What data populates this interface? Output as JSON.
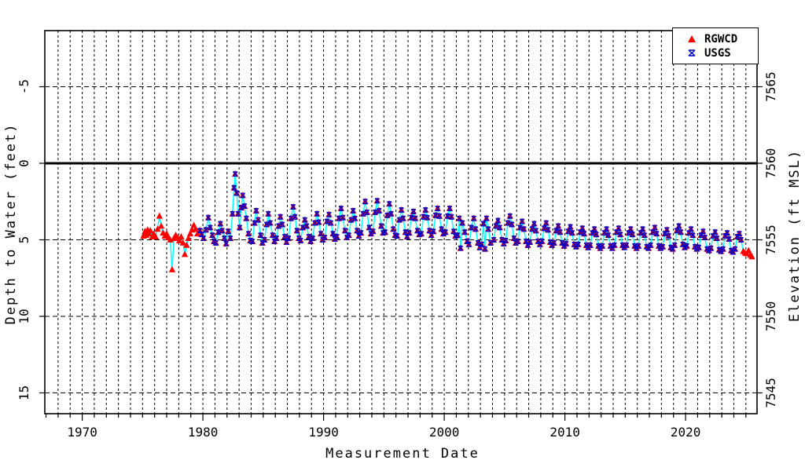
{
  "chart_data": {
    "type": "scatter",
    "title": "",
    "xlabel": "Measurement Date",
    "ylabel_left": "Depth to Water (feet)",
    "ylabel_right": "Elevation (ft MSL)",
    "x_labeled_ticks": [
      1970,
      1980,
      1990,
      2000,
      2010,
      2020
    ],
    "x_minor_tick_years": [
      1967,
      2025
    ],
    "grid_vertical_years": [
      1968,
      2025
    ],
    "y_left_ticks": [
      -5,
      0,
      5,
      10,
      15
    ],
    "y_left_grid_dashed": [
      -5,
      5,
      10,
      15
    ],
    "y_right_ticks": [
      7565,
      7560,
      7555,
      7550,
      7545
    ],
    "elevation_reference_ft": 7560,
    "surface_line_depth": 0,
    "axis_color": "#000000",
    "line_color": "#00ffff",
    "legend": [
      {
        "label": "RGWCD",
        "marker": "filled-triangle",
        "color": "#ff0000"
      },
      {
        "label": "USGS",
        "marker": "x-with-bars",
        "color": "#0000cd"
      }
    ],
    "usgs_range": [
      1979.7,
      2024.7
    ],
    "points": [
      [
        1975.08,
        4.75
      ],
      [
        1975.2,
        4.45
      ],
      [
        1975.3,
        4.7
      ],
      [
        1975.42,
        4.35
      ],
      [
        1975.53,
        4.6
      ],
      [
        1975.65,
        4.4
      ],
      [
        1975.8,
        4.8
      ],
      [
        1975.93,
        4.6
      ],
      [
        1976.08,
        4.8
      ],
      [
        1976.25,
        4.3
      ],
      [
        1976.4,
        3.45
      ],
      [
        1976.55,
        4.1
      ],
      [
        1976.7,
        4.55
      ],
      [
        1976.85,
        4.75
      ],
      [
        1977.0,
        4.6
      ],
      [
        1977.15,
        4.85
      ],
      [
        1977.3,
        5.0
      ],
      [
        1977.45,
        6.95
      ],
      [
        1977.6,
        4.9
      ],
      [
        1977.75,
        4.7
      ],
      [
        1977.9,
        4.85
      ],
      [
        1978.05,
        5.05
      ],
      [
        1978.2,
        4.8
      ],
      [
        1978.35,
        5.2
      ],
      [
        1978.5,
        5.95
      ],
      [
        1978.65,
        5.35
      ],
      [
        1978.8,
        4.9
      ],
      [
        1978.95,
        4.6
      ],
      [
        1979.1,
        4.35
      ],
      [
        1979.25,
        4.05
      ],
      [
        1979.4,
        4.3
      ],
      [
        1979.55,
        4.6
      ],
      [
        1979.75,
        4.4
      ],
      [
        1979.9,
        4.65
      ],
      [
        1980.05,
        4.9
      ],
      [
        1980.25,
        4.35
      ],
      [
        1980.45,
        3.55
      ],
      [
        1980.6,
        4.2
      ],
      [
        1980.78,
        4.7
      ],
      [
        1980.92,
        5.1
      ],
      [
        1981.08,
        5.2
      ],
      [
        1981.28,
        4.5
      ],
      [
        1981.45,
        3.95
      ],
      [
        1981.6,
        4.4
      ],
      [
        1981.78,
        4.9
      ],
      [
        1981.93,
        5.25
      ],
      [
        1982.1,
        4.45
      ],
      [
        1982.28,
        4.9
      ],
      [
        1982.45,
        3.3
      ],
      [
        1982.58,
        1.6
      ],
      [
        1982.68,
        0.7
      ],
      [
        1982.8,
        1.95
      ],
      [
        1982.92,
        3.3
      ],
      [
        1983.05,
        4.2
      ],
      [
        1983.18,
        2.9
      ],
      [
        1983.3,
        2.1
      ],
      [
        1983.45,
        2.8
      ],
      [
        1983.6,
        3.6
      ],
      [
        1983.78,
        4.6
      ],
      [
        1983.93,
        5.05
      ],
      [
        1984.1,
        5.1
      ],
      [
        1984.28,
        3.9
      ],
      [
        1984.42,
        3.1
      ],
      [
        1984.58,
        3.7
      ],
      [
        1984.78,
        4.7
      ],
      [
        1984.93,
        5.2
      ],
      [
        1985.1,
        5.0
      ],
      [
        1985.28,
        4.0
      ],
      [
        1985.42,
        3.3
      ],
      [
        1985.58,
        3.9
      ],
      [
        1985.78,
        4.7
      ],
      [
        1985.93,
        5.1
      ],
      [
        1986.1,
        4.9
      ],
      [
        1986.28,
        4.1
      ],
      [
        1986.42,
        3.5
      ],
      [
        1986.58,
        4.0
      ],
      [
        1986.78,
        4.8
      ],
      [
        1986.93,
        5.15
      ],
      [
        1987.1,
        4.9
      ],
      [
        1987.3,
        3.6
      ],
      [
        1987.48,
        2.85
      ],
      [
        1987.63,
        3.5
      ],
      [
        1987.8,
        4.4
      ],
      [
        1987.95,
        4.9
      ],
      [
        1988.1,
        5.05
      ],
      [
        1988.28,
        4.2
      ],
      [
        1988.45,
        3.7
      ],
      [
        1988.6,
        4.1
      ],
      [
        1988.78,
        4.8
      ],
      [
        1988.93,
        5.1
      ],
      [
        1989.1,
        4.9
      ],
      [
        1989.28,
        3.9
      ],
      [
        1989.45,
        3.3
      ],
      [
        1989.6,
        3.85
      ],
      [
        1989.78,
        4.6
      ],
      [
        1989.93,
        5.0
      ],
      [
        1990.1,
        4.85
      ],
      [
        1990.28,
        3.8
      ],
      [
        1990.45,
        3.35
      ],
      [
        1990.6,
        3.9
      ],
      [
        1990.78,
        4.6
      ],
      [
        1990.93,
        4.95
      ],
      [
        1991.1,
        4.8
      ],
      [
        1991.28,
        3.6
      ],
      [
        1991.45,
        2.95
      ],
      [
        1991.6,
        3.55
      ],
      [
        1991.78,
        4.4
      ],
      [
        1991.93,
        4.85
      ],
      [
        1992.1,
        4.7
      ],
      [
        1992.28,
        3.7
      ],
      [
        1992.45,
        3.1
      ],
      [
        1992.6,
        3.6
      ],
      [
        1992.78,
        4.4
      ],
      [
        1992.93,
        4.75
      ],
      [
        1993.1,
        4.55
      ],
      [
        1993.28,
        3.3
      ],
      [
        1993.45,
        2.5
      ],
      [
        1993.6,
        3.2
      ],
      [
        1993.78,
        4.2
      ],
      [
        1993.93,
        4.6
      ],
      [
        1994.1,
        4.45
      ],
      [
        1994.28,
        3.2
      ],
      [
        1994.45,
        2.45
      ],
      [
        1994.6,
        3.1
      ],
      [
        1994.78,
        4.1
      ],
      [
        1994.93,
        4.55
      ],
      [
        1995.1,
        4.5
      ],
      [
        1995.28,
        3.4
      ],
      [
        1995.45,
        2.65
      ],
      [
        1995.6,
        3.3
      ],
      [
        1995.78,
        4.3
      ],
      [
        1995.93,
        4.7
      ],
      [
        1996.1,
        4.75
      ],
      [
        1996.28,
        3.7
      ],
      [
        1996.45,
        3.05
      ],
      [
        1996.6,
        3.6
      ],
      [
        1996.78,
        4.5
      ],
      [
        1996.93,
        4.8
      ],
      [
        1997.1,
        4.55
      ],
      [
        1997.28,
        3.55
      ],
      [
        1997.45,
        3.15
      ],
      [
        1997.6,
        3.6
      ],
      [
        1997.78,
        4.4
      ],
      [
        1997.93,
        4.65
      ],
      [
        1998.1,
        4.6
      ],
      [
        1998.28,
        3.5
      ],
      [
        1998.45,
        3.05
      ],
      [
        1998.6,
        3.55
      ],
      [
        1998.78,
        4.4
      ],
      [
        1998.93,
        4.7
      ],
      [
        1999.1,
        4.45
      ],
      [
        1999.28,
        3.4
      ],
      [
        1999.45,
        2.95
      ],
      [
        1999.6,
        3.45
      ],
      [
        1999.78,
        4.3
      ],
      [
        1999.93,
        4.6
      ],
      [
        2000.1,
        4.5
      ],
      [
        2000.28,
        3.45
      ],
      [
        2000.45,
        2.95
      ],
      [
        2000.6,
        3.5
      ],
      [
        2000.78,
        4.45
      ],
      [
        2000.93,
        4.75
      ],
      [
        2001.1,
        4.7
      ],
      [
        2001.25,
        3.6
      ],
      [
        2001.35,
        5.55
      ],
      [
        2001.5,
        3.9
      ],
      [
        2001.7,
        4.5
      ],
      [
        2001.9,
        5.1
      ],
      [
        2002.05,
        5.3
      ],
      [
        2002.25,
        4.2
      ],
      [
        2002.45,
        3.6
      ],
      [
        2002.6,
        4.3
      ],
      [
        2002.8,
        5.2
      ],
      [
        2002.95,
        5.5
      ],
      [
        2003.1,
        5.3
      ],
      [
        2003.25,
        3.95
      ],
      [
        2003.38,
        5.6
      ],
      [
        2003.5,
        3.6
      ],
      [
        2003.65,
        4.3
      ],
      [
        2003.85,
        5.2
      ],
      [
        2004.1,
        5.0
      ],
      [
        2004.28,
        4.1
      ],
      [
        2004.45,
        3.75
      ],
      [
        2004.6,
        4.2
      ],
      [
        2004.78,
        5.0
      ],
      [
        2004.93,
        5.25
      ],
      [
        2005.1,
        5.05
      ],
      [
        2005.28,
        3.9
      ],
      [
        2005.45,
        3.45
      ],
      [
        2005.6,
        4.0
      ],
      [
        2005.78,
        4.9
      ],
      [
        2005.93,
        5.2
      ],
      [
        2006.1,
        5.1
      ],
      [
        2006.28,
        4.2
      ],
      [
        2006.45,
        3.8
      ],
      [
        2006.6,
        4.3
      ],
      [
        2006.78,
        5.1
      ],
      [
        2006.93,
        5.35
      ],
      [
        2007.1,
        5.15
      ],
      [
        2007.28,
        4.3
      ],
      [
        2007.45,
        3.95
      ],
      [
        2007.6,
        4.4
      ],
      [
        2007.78,
        5.1
      ],
      [
        2007.93,
        5.3
      ],
      [
        2008.1,
        5.1
      ],
      [
        2008.28,
        4.25
      ],
      [
        2008.45,
        3.9
      ],
      [
        2008.6,
        4.35
      ],
      [
        2008.78,
        5.15
      ],
      [
        2008.93,
        5.35
      ],
      [
        2009.1,
        5.2
      ],
      [
        2009.28,
        4.4
      ],
      [
        2009.45,
        4.1
      ],
      [
        2009.6,
        4.5
      ],
      [
        2009.78,
        5.2
      ],
      [
        2009.93,
        5.4
      ],
      [
        2010.1,
        5.25
      ],
      [
        2010.28,
        4.45
      ],
      [
        2010.45,
        4.15
      ],
      [
        2010.6,
        4.55
      ],
      [
        2010.78,
        5.3
      ],
      [
        2010.93,
        5.45
      ],
      [
        2011.1,
        5.3
      ],
      [
        2011.28,
        4.5
      ],
      [
        2011.45,
        4.25
      ],
      [
        2011.6,
        4.6
      ],
      [
        2011.78,
        5.35
      ],
      [
        2011.93,
        5.5
      ],
      [
        2012.1,
        5.35
      ],
      [
        2012.28,
        4.55
      ],
      [
        2012.45,
        4.3
      ],
      [
        2012.6,
        4.65
      ],
      [
        2012.78,
        5.4
      ],
      [
        2012.93,
        5.55
      ],
      [
        2013.1,
        5.4
      ],
      [
        2013.28,
        4.55
      ],
      [
        2013.45,
        4.3
      ],
      [
        2013.6,
        4.7
      ],
      [
        2013.78,
        5.4
      ],
      [
        2013.93,
        5.55
      ],
      [
        2014.1,
        5.35
      ],
      [
        2014.28,
        4.5
      ],
      [
        2014.45,
        4.25
      ],
      [
        2014.6,
        4.65
      ],
      [
        2014.78,
        5.35
      ],
      [
        2014.93,
        5.5
      ],
      [
        2015.1,
        5.35
      ],
      [
        2015.28,
        4.55
      ],
      [
        2015.45,
        4.3
      ],
      [
        2015.6,
        4.65
      ],
      [
        2015.78,
        5.4
      ],
      [
        2015.93,
        5.55
      ],
      [
        2016.1,
        5.4
      ],
      [
        2016.28,
        4.55
      ],
      [
        2016.45,
        4.3
      ],
      [
        2016.6,
        4.7
      ],
      [
        2016.78,
        5.45
      ],
      [
        2016.93,
        5.55
      ],
      [
        2017.1,
        5.35
      ],
      [
        2017.28,
        4.5
      ],
      [
        2017.45,
        4.2
      ],
      [
        2017.6,
        4.6
      ],
      [
        2017.78,
        5.4
      ],
      [
        2017.93,
        5.55
      ],
      [
        2018.1,
        5.45
      ],
      [
        2018.28,
        4.6
      ],
      [
        2018.45,
        4.35
      ],
      [
        2018.6,
        4.75
      ],
      [
        2018.78,
        5.5
      ],
      [
        2018.93,
        5.6
      ],
      [
        2019.1,
        5.35
      ],
      [
        2019.28,
        4.4
      ],
      [
        2019.45,
        4.1
      ],
      [
        2019.6,
        4.5
      ],
      [
        2019.78,
        5.3
      ],
      [
        2019.93,
        5.5
      ],
      [
        2020.1,
        5.4
      ],
      [
        2020.28,
        4.55
      ],
      [
        2020.45,
        4.3
      ],
      [
        2020.6,
        4.7
      ],
      [
        2020.78,
        5.45
      ],
      [
        2020.93,
        5.6
      ],
      [
        2021.1,
        5.5
      ],
      [
        2021.28,
        4.7
      ],
      [
        2021.45,
        4.45
      ],
      [
        2021.6,
        4.85
      ],
      [
        2021.78,
        5.6
      ],
      [
        2021.93,
        5.7
      ],
      [
        2022.1,
        5.55
      ],
      [
        2022.28,
        4.75
      ],
      [
        2022.45,
        4.5
      ],
      [
        2022.6,
        4.9
      ],
      [
        2022.78,
        5.65
      ],
      [
        2022.93,
        5.75
      ],
      [
        2023.1,
        5.6
      ],
      [
        2023.28,
        4.75
      ],
      [
        2023.45,
        4.55
      ],
      [
        2023.6,
        4.95
      ],
      [
        2023.78,
        5.7
      ],
      [
        2023.93,
        5.8
      ],
      [
        2024.1,
        5.6
      ],
      [
        2024.28,
        4.8
      ],
      [
        2024.45,
        4.6
      ],
      [
        2024.6,
        5.0
      ],
      [
        2024.78,
        5.75
      ],
      [
        2024.93,
        5.85
      ],
      [
        2025.08,
        5.9
      ],
      [
        2025.22,
        5.7
      ],
      [
        2025.38,
        6.0
      ],
      [
        2025.5,
        6.1
      ]
    ]
  }
}
